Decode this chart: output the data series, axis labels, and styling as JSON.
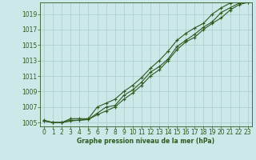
{
  "xlabel": "Graphe pression niveau de la mer (hPa)",
  "background_color": "#cce8e8",
  "grid_color": "#b0d0d0",
  "line_color": "#2d5a1e",
  "x": [
    0,
    1,
    2,
    3,
    4,
    5,
    6,
    7,
    8,
    9,
    10,
    11,
    12,
    13,
    14,
    15,
    16,
    17,
    18,
    19,
    20,
    21,
    22,
    23
  ],
  "line1": [
    1005.3,
    1005.0,
    1005.0,
    1005.2,
    1005.3,
    1005.4,
    1006.2,
    1007.0,
    1007.2,
    1008.5,
    1009.2,
    1010.2,
    1011.5,
    1012.2,
    1013.2,
    1014.8,
    1015.6,
    1016.4,
    1017.3,
    1018.0,
    1019.2,
    1019.8,
    1020.4,
    1020.6
  ],
  "line2": [
    1005.2,
    1005.0,
    1005.0,
    1005.5,
    1005.5,
    1005.5,
    1007.0,
    1007.5,
    1008.0,
    1009.0,
    1009.8,
    1010.8,
    1012.0,
    1013.0,
    1014.2,
    1015.6,
    1016.5,
    1017.2,
    1017.8,
    1019.0,
    1019.8,
    1020.4,
    1020.8,
    1021.0
  ],
  "line3": [
    1005.2,
    1005.0,
    1005.0,
    1005.3,
    1005.3,
    1005.4,
    1006.0,
    1006.5,
    1007.0,
    1008.0,
    1008.8,
    1009.8,
    1011.0,
    1011.8,
    1013.0,
    1014.4,
    1015.4,
    1016.0,
    1017.0,
    1017.8,
    1018.5,
    1019.5,
    1020.2,
    1020.5
  ],
  "ylim": [
    1004.5,
    1020.5
  ],
  "yticks": [
    1005,
    1007,
    1009,
    1011,
    1013,
    1015,
    1017,
    1019
  ],
  "xlim": [
    -0.5,
    23.5
  ],
  "xticks": [
    0,
    1,
    2,
    3,
    4,
    5,
    6,
    7,
    8,
    9,
    10,
    11,
    12,
    13,
    14,
    15,
    16,
    17,
    18,
    19,
    20,
    21,
    22,
    23
  ],
  "xlabel_fontsize": 5.5,
  "tick_fontsize": 5.5
}
